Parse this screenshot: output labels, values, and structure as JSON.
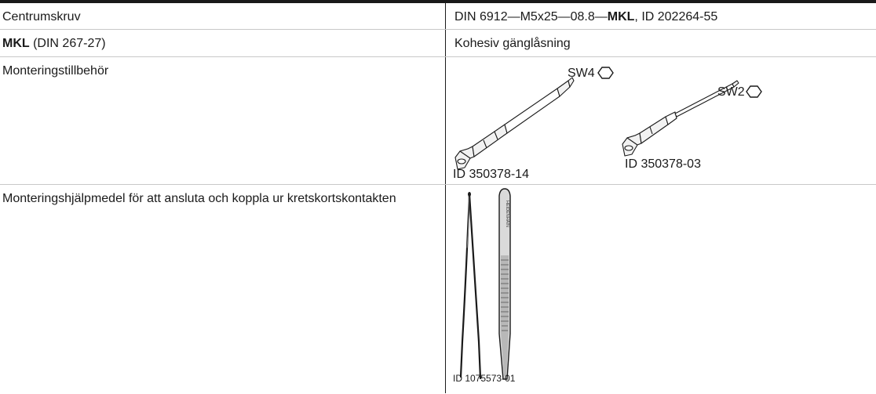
{
  "rows": [
    {
      "label": "Centrumskruv",
      "value_prefix": "DIN 6912—M5x25—08.8—",
      "value_bold": "MKL",
      "value_suffix": ", ID 202264-55"
    },
    {
      "label_bold": "MKL",
      "label_rest": " (DIN 267-27)",
      "value": "Kohesiv gänglåsning"
    },
    {
      "label": "Monteringstillbehör",
      "tools": [
        {
          "id_label": "ID 350378-14",
          "size_label": "SW4",
          "icon": "hexagon-icon"
        },
        {
          "id_label": "ID 350378-03",
          "size_label": "SW2",
          "icon": "hexagon-icon"
        }
      ]
    },
    {
      "label": "Monteringshjälpmedel för att ansluta och koppla ur kretskortskontakten",
      "tweezers_id": "ID 1075573-01",
      "tweezers_engraving": "HEIDENHAIN"
    }
  ]
}
